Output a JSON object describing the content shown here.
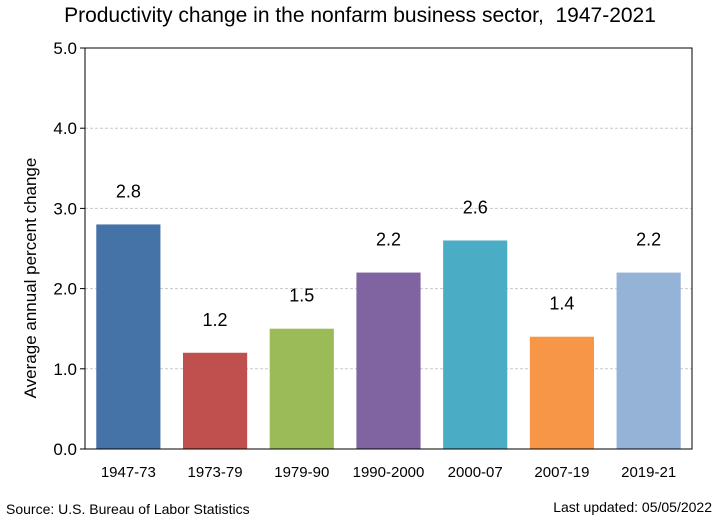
{
  "chart_data": {
    "type": "bar",
    "title": "Productivity change in the nonfarm business sector,  1947-2021",
    "xlabel": "",
    "ylabel": "Average annual percent change",
    "categories": [
      "1947-73",
      "1973-79",
      "1979-90",
      "1990-2000",
      "2000-07",
      "2007-19",
      "2019-21"
    ],
    "values": [
      2.8,
      1.2,
      1.5,
      2.2,
      2.6,
      1.4,
      2.2
    ],
    "value_labels": [
      "2.8",
      "1.2",
      "1.5",
      "2.2",
      "2.6",
      "1.4",
      "2.2"
    ],
    "colors": [
      "#4573A7",
      "#C0504D",
      "#9BBB59",
      "#8064A2",
      "#4BACC6",
      "#F79646",
      "#95B3D7"
    ],
    "ylim": [
      0,
      5
    ],
    "yticks": [
      0,
      1,
      2,
      3,
      4,
      5
    ],
    "ytick_labels": [
      "0.0",
      "1.0",
      "2.0",
      "3.0",
      "4.0",
      "5.0"
    ],
    "grid": true,
    "legend": "none"
  },
  "footer": {
    "source": "Source: U.S. Bureau of Labor Statistics",
    "last_updated": "Last updated: 05/05/2022"
  }
}
